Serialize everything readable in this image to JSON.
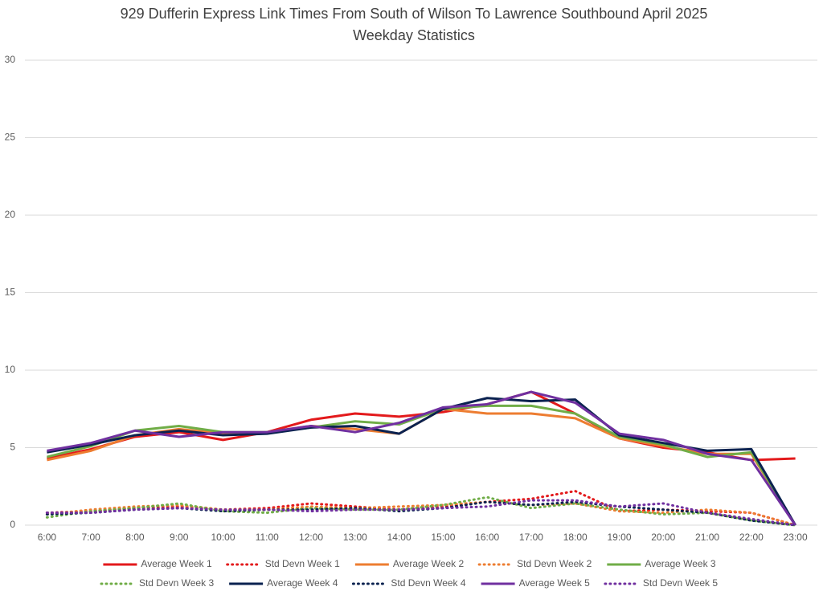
{
  "chart_data": {
    "type": "line",
    "title": "929 Dufferin Express Link Times From South of Wilson To Lawrence Southbound April 2025",
    "subtitle": "Weekday Statistics",
    "categories": [
      "6:00",
      "7:00",
      "8:00",
      "9:00",
      "10:00",
      "11:00",
      "12:00",
      "13:00",
      "14:00",
      "15:00",
      "16:00",
      "17:00",
      "18:00",
      "19:00",
      "20:00",
      "21:00",
      "22:00",
      "23:00"
    ],
    "ylim": [
      0,
      30
    ],
    "yticks": [
      0,
      5,
      10,
      15,
      20,
      25,
      30
    ],
    "grid": true,
    "series": [
      {
        "name": "Average Week 1",
        "color": "#e31a1c",
        "style": "solid",
        "values": [
          4.3,
          4.9,
          5.7,
          6.0,
          5.5,
          6.0,
          6.8,
          7.2,
          7.0,
          7.3,
          7.8,
          8.6,
          7.2,
          5.6,
          5.0,
          4.7,
          4.2,
          4.3
        ]
      },
      {
        "name": "Std Devn Week 1",
        "color": "#e31a1c",
        "style": "dotted",
        "values": [
          0.8,
          0.9,
          1.1,
          1.2,
          1.0,
          1.1,
          1.4,
          1.2,
          1.0,
          1.2,
          1.5,
          1.7,
          2.2,
          0.9,
          1.0,
          0.9,
          0.8,
          0
        ]
      },
      {
        "name": "Average Week 2",
        "color": "#ed7d31",
        "style": "solid",
        "values": [
          4.2,
          4.8,
          5.8,
          6.2,
          5.9,
          6.0,
          6.4,
          6.2,
          5.9,
          7.5,
          7.2,
          7.2,
          6.9,
          5.6,
          5.1,
          4.6,
          4.6,
          0
        ]
      },
      {
        "name": "Std Devn Week 2",
        "color": "#ed7d31",
        "style": "dotted",
        "values": [
          0.7,
          1.0,
          1.2,
          1.3,
          1.0,
          1.0,
          1.2,
          1.1,
          1.2,
          1.3,
          1.5,
          1.3,
          1.4,
          0.9,
          0.8,
          1.0,
          0.8,
          0
        ]
      },
      {
        "name": "Average Week 3",
        "color": "#70ad47",
        "style": "solid",
        "values": [
          4.4,
          5.1,
          6.1,
          6.4,
          6.0,
          6.0,
          6.3,
          6.7,
          6.5,
          7.5,
          7.7,
          7.7,
          7.2,
          5.7,
          5.2,
          4.4,
          4.7,
          0
        ]
      },
      {
        "name": "Std Devn Week 3",
        "color": "#70ad47",
        "style": "dotted",
        "values": [
          0.5,
          0.9,
          1.1,
          1.4,
          0.9,
          0.8,
          1.1,
          1.0,
          1.0,
          1.3,
          1.8,
          1.1,
          1.4,
          1.0,
          0.7,
          0.8,
          0.3,
          0
        ]
      },
      {
        "name": "Average Week 4",
        "color": "#0b2250",
        "style": "solid",
        "values": [
          4.7,
          5.2,
          5.8,
          6.1,
          5.8,
          5.9,
          6.3,
          6.4,
          5.9,
          7.5,
          8.2,
          8.0,
          8.1,
          5.8,
          5.3,
          4.8,
          4.9,
          0
        ]
      },
      {
        "name": "Std Devn Week 4",
        "color": "#0b2250",
        "style": "dotted",
        "values": [
          0.7,
          0.8,
          1.0,
          1.1,
          0.9,
          1.0,
          1.0,
          1.1,
          0.9,
          1.1,
          1.5,
          1.3,
          1.5,
          1.2,
          1.0,
          0.8,
          0.3,
          0
        ]
      },
      {
        "name": "Average Week 5",
        "color": "#7030a0",
        "style": "solid",
        "values": [
          4.8,
          5.3,
          6.1,
          5.7,
          6.0,
          6.0,
          6.4,
          6.0,
          6.6,
          7.6,
          7.8,
          8.6,
          7.9,
          5.9,
          5.5,
          4.6,
          4.2,
          0
        ]
      },
      {
        "name": "Std Devn Week 5",
        "color": "#7030a0",
        "style": "dotted",
        "values": [
          0.8,
          0.8,
          1.0,
          1.1,
          1.0,
          1.0,
          0.9,
          1.0,
          1.0,
          1.1,
          1.2,
          1.6,
          1.6,
          1.2,
          1.4,
          0.8,
          0.4,
          0
        ]
      }
    ]
  }
}
